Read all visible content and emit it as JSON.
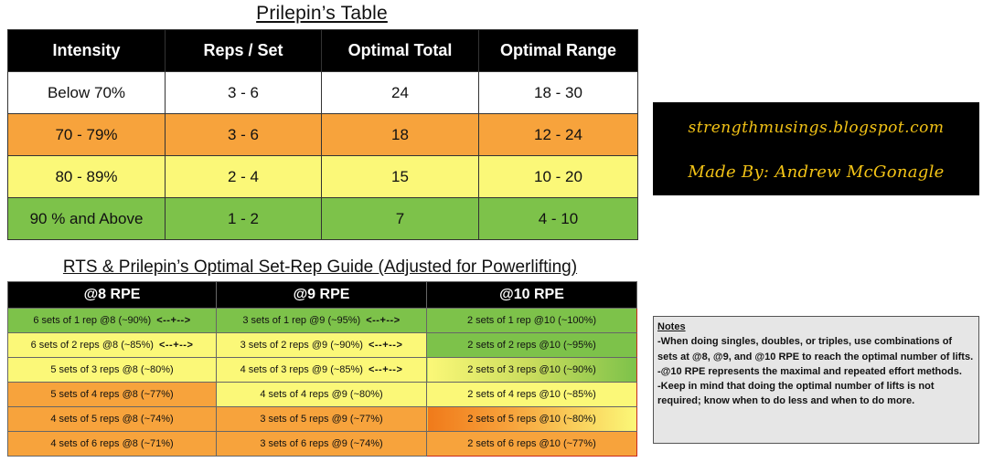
{
  "table1": {
    "title": "Prilepin’s Table",
    "headers": [
      "Intensity",
      "Reps / Set",
      "Optimal Total",
      "Optimal Range"
    ],
    "rows": [
      {
        "cells": [
          "Below 70%",
          "3 - 6",
          "24",
          "18 - 30"
        ],
        "color": "#ffffff"
      },
      {
        "cells": [
          "70 - 79%",
          "3 - 6",
          "18",
          "12 - 24"
        ],
        "color": "#f7a33c"
      },
      {
        "cells": [
          "80 - 89%",
          "2 - 4",
          "15",
          "10 - 20"
        ],
        "color": "#fbf878"
      },
      {
        "cells": [
          "90 % and Above",
          "1 - 2",
          "7",
          "4 - 10"
        ],
        "color": "#7dc24a"
      }
    ]
  },
  "credit": {
    "line1": "strengthmusings.blogspot.com",
    "line2": "Made By: Andrew McGonagle",
    "text_color": "#f3c316"
  },
  "table2": {
    "title": "RTS & Prilepin’s Optimal Set-Rep Guide (Adjusted for Powerlifting)",
    "headers": [
      "@8 RPE",
      "@9 RPE",
      "@10 RPE"
    ],
    "rows": [
      {
        "c1": "6 sets of 1 rep @8 (~90%)",
        "a1": "<--+-->",
        "c2": "3 sets of 1 rep @9 (~95%)",
        "a2": "<--+-->",
        "c3": "2 sets of 1 rep @10 (~100%)",
        "colors": [
          "#7dc24a",
          "#7dc24a",
          "#7dc24a"
        ]
      },
      {
        "c1": "6 sets of 2 reps @8 (~85%)",
        "a1": "<--+-->",
        "c2": "3 sets of 2 reps @9 (~90%)",
        "a2": "<--+-->",
        "c3": "2 sets of 2 reps @10 (~95%)",
        "colors": [
          "#fbf878",
          "#fbf878",
          "#7dc24a"
        ]
      },
      {
        "c1": "5 sets of 3 reps @8 (~80%)",
        "a1": "",
        "c2": "4 sets of 3 reps @9 (~85%)",
        "a2": "<--+-->",
        "c3": "2 sets of 3 reps @10 (~90%)",
        "colors": [
          "#fbf878",
          "#fbf878",
          "#b8d65a"
        ]
      },
      {
        "c1": "5 sets of 4 reps @8 (~77%)",
        "a1": "",
        "c2": "4 sets of 4 reps @9 (~80%)",
        "a2": "",
        "c3": "2 sets of 4 reps @10 (~85%)",
        "colors": [
          "#f7a33c",
          "#fbf878",
          "#fbf878"
        ]
      },
      {
        "c1": "4 sets of 5 reps @8 (~74%)",
        "a1": "",
        "c2": "3 sets of 5 reps @9 (~77%)",
        "a2": "",
        "c3": "2 sets of 5 reps @10 (~80%)",
        "colors": [
          "#f7a33c",
          "#f7a33c",
          "#f7a33c"
        ]
      },
      {
        "c1": "4 sets of 6 reps @8 (~71%)",
        "a1": "",
        "c2": "3 sets of 6 reps @9 (~74%)",
        "a2": "",
        "c3": "2 sets of 6 reps @10 (~77%)",
        "colors": [
          "#f7a33c",
          "#f7a33c",
          "#f7a33c"
        ]
      }
    ]
  },
  "notes": {
    "title": "Notes",
    "lines": [
      "-When doing singles, doubles, or triples, use combinations of sets at @8, @9, and @10 RPE to reach the optimal number of lifts.",
      "-@10 RPE represents the maximal and repeated effort methods.",
      "-Keep in mind that doing the optimal number of lifts is not required; know when to do less and when to do more."
    ]
  }
}
